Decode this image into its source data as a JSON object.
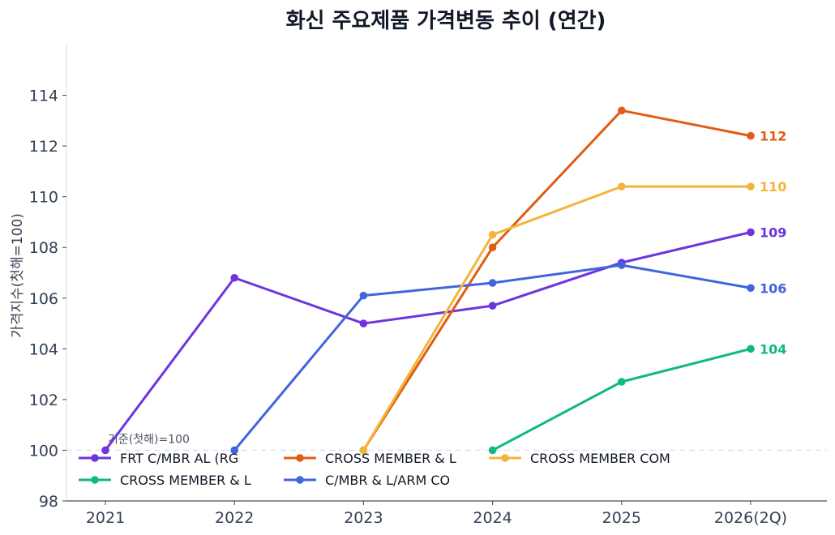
{
  "chart_data": {
    "type": "line",
    "title": "화신 주요제품 가격변동 추이 (연간)",
    "xlabel": "",
    "ylabel": "가격지수(첫해=100)",
    "categories": [
      "2021",
      "2022",
      "2023",
      "2024",
      "2025",
      "2026(2Q)"
    ],
    "ylim": [
      98,
      116
    ],
    "yticks": [
      98,
      100,
      102,
      104,
      106,
      108,
      110,
      112,
      114
    ],
    "grid": false,
    "baseline": {
      "value": 100,
      "label": "기준(첫해)=100"
    },
    "legend_position": "bottom-left",
    "series": [
      {
        "name": "FRT C/MBR AL (RG",
        "color": "#6d34e0",
        "values": [
          100,
          106.8,
          105.0,
          105.7,
          107.4,
          108.6
        ],
        "end_label": "109"
      },
      {
        "name": "CROSS MEMBER & L",
        "color": "#10b981",
        "values": [
          null,
          null,
          null,
          100,
          102.7,
          104.0
        ],
        "end_label": "104"
      },
      {
        "name": "CROSS MEMBER & L",
        "color": "#e05d12",
        "values": [
          null,
          null,
          100,
          108.0,
          113.4,
          112.4
        ],
        "end_label": "112"
      },
      {
        "name": "C/MBR & L/ARM CO",
        "color": "#4065dc",
        "values": [
          null,
          100,
          106.1,
          106.6,
          107.3,
          106.4
        ],
        "end_label": "106"
      },
      {
        "name": "CROSS MEMBER COM",
        "color": "#f2b53a",
        "values": [
          null,
          null,
          100,
          108.5,
          110.4,
          110.4
        ],
        "end_label": "110"
      }
    ]
  }
}
